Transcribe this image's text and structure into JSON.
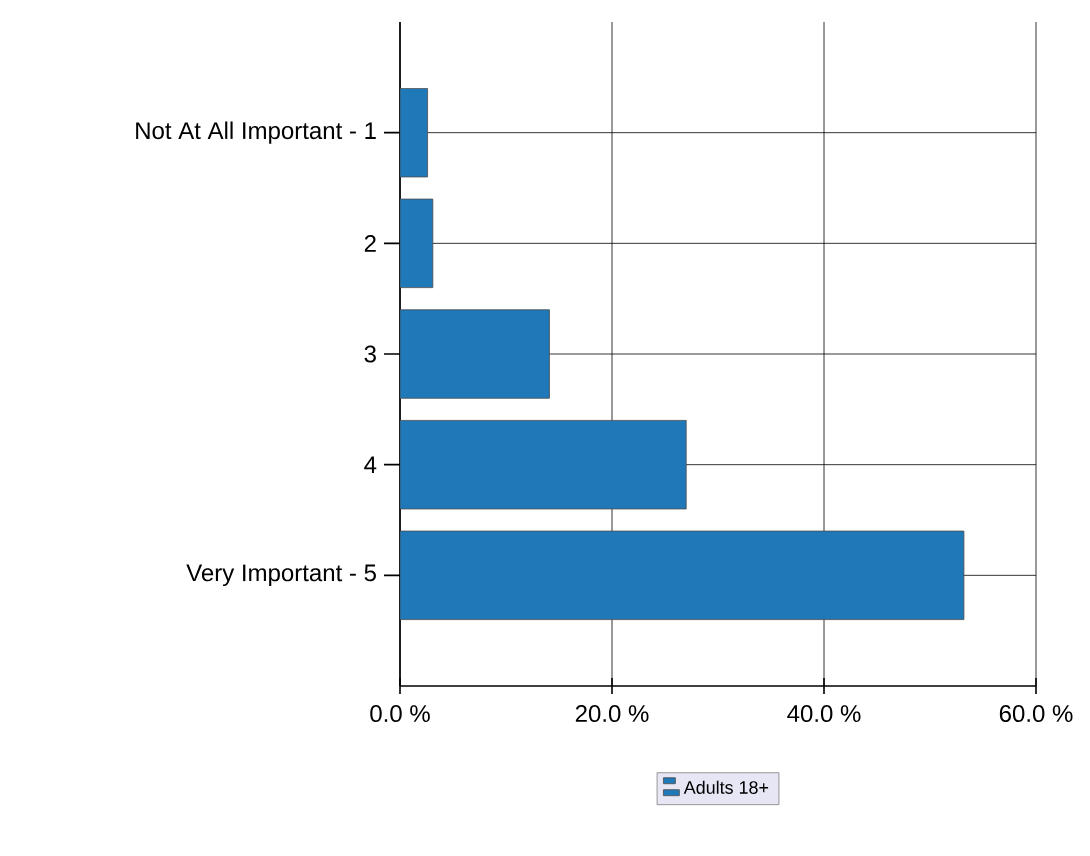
{
  "chart_data": {
    "type": "bar",
    "orientation": "horizontal",
    "categories": [
      "Not At All Important - 1",
      "2",
      "3",
      "4",
      "Very Important - 5"
    ],
    "series": [
      {
        "name": "Adults 18+",
        "color": "#1f78b8",
        "values": [
          2.6,
          3.1,
          14.1,
          27.0,
          53.2
        ]
      }
    ],
    "xlim": [
      0,
      60
    ],
    "xticks": [
      {
        "value": 0,
        "label": "0.0 %"
      },
      {
        "value": 20,
        "label": "20.0 %"
      },
      {
        "value": 40,
        "label": "40.0 %"
      },
      {
        "value": 60,
        "label": "60.0 %"
      }
    ],
    "grid": true,
    "legend": "bottom"
  }
}
